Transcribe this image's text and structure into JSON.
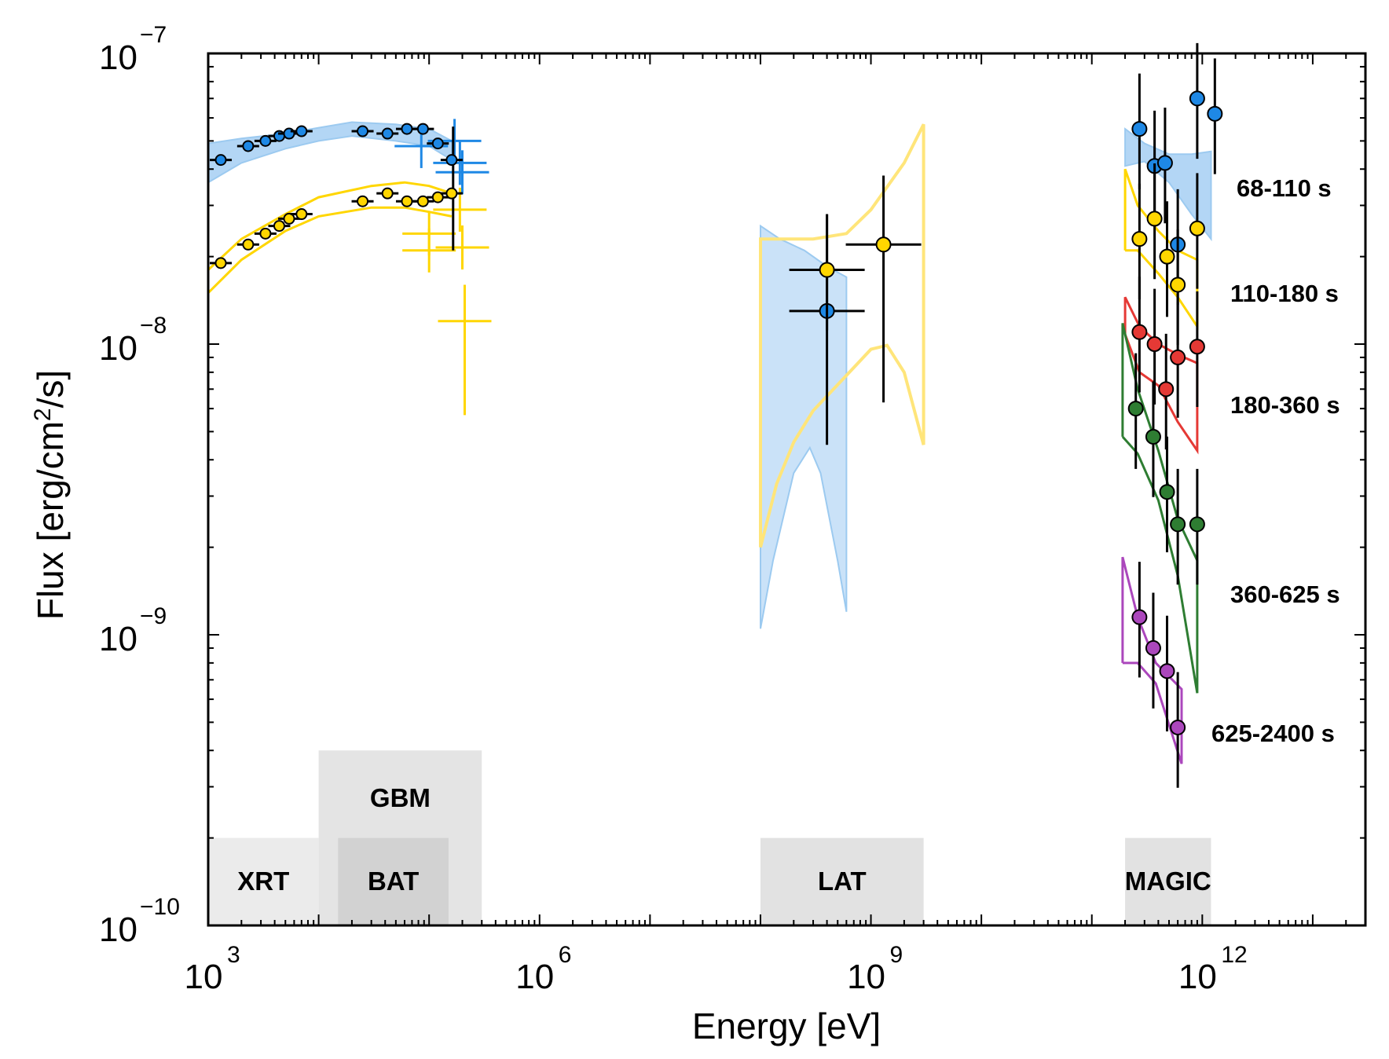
{
  "chart_data": {
    "type": "scatter",
    "title": "",
    "xlabel": "Energy [eV]",
    "ylabel": "Flux [erg/cm2/s]",
    "ylabel_parts": {
      "pre": "Flux [erg/cm",
      "sup": "2",
      "post": "/s]"
    },
    "xscale": "log",
    "yscale": "log",
    "xlim": [
      1000,
      30000000000000.0
    ],
    "ylim": [
      1e-10,
      1e-07
    ],
    "x_ticks": [
      {
        "value": 1000,
        "base": "10",
        "exp": "3"
      },
      {
        "value": 1000000,
        "base": "10",
        "exp": "6"
      },
      {
        "value": 1000000000,
        "base": "10",
        "exp": "9"
      },
      {
        "value": 1000000000000,
        "base": "10",
        "exp": "12"
      }
    ],
    "y_ticks": [
      {
        "value": 1e-10,
        "base": "10",
        "exp": "−10"
      },
      {
        "value": 1e-09,
        "base": "10",
        "exp": "−9"
      },
      {
        "value": 1e-08,
        "base": "10",
        "exp": "−8"
      },
      {
        "value": 1e-07,
        "base": "10",
        "exp": "−7"
      }
    ],
    "colors": {
      "68-110 s": "#1e88e5",
      "110-180 s": "#ffd600",
      "180-360 s": "#e53935",
      "360-625 s": "#2e7d32",
      "625-2400 s": "#ab47bc",
      "band_blue": "#b3d6f5",
      "line_yellow": "#ffe57a",
      "instrument_band": "#d9d9d9"
    },
    "instruments": [
      {
        "name": "XRT",
        "emin": 1000,
        "emax": 10000,
        "fmax": 2e-10
      },
      {
        "name": "GBM",
        "emin": 10000,
        "emax": 300000,
        "fmax": 4e-10
      },
      {
        "name": "BAT",
        "emin": 15000,
        "emax": 150000,
        "fmax": 2e-10
      },
      {
        "name": "LAT",
        "emin": 100000000,
        "emax": 3000000000,
        "fmax": 2e-10
      },
      {
        "name": "MAGIC",
        "emin": 200000000000,
        "emax": 1200000000000,
        "fmax": 2e-10
      }
    ],
    "series": [
      {
        "name": "68-110 s",
        "color": "#1e88e5",
        "points": [
          {
            "x": 1300,
            "y": 4.3e-08
          },
          {
            "x": 2300,
            "y": 4.8e-08
          },
          {
            "x": 3300,
            "y": 5e-08
          },
          {
            "x": 4400,
            "y": 5.2e-08
          },
          {
            "x": 5400,
            "y": 5.3e-08
          },
          {
            "x": 7000,
            "y": 5.4e-08
          },
          {
            "x": 25000,
            "y": 5.4e-08
          },
          {
            "x": 42000,
            "y": 5.3e-08
          },
          {
            "x": 63000,
            "y": 5.5e-08
          },
          {
            "x": 88000,
            "y": 5.5e-08
          },
          {
            "x": 120000,
            "y": 4.9e-08
          },
          {
            "x": 160000,
            "y": 4.3e-08
          },
          {
            "x": 400000000,
            "y": 1.3e-08,
            "ylo": 4.5e-09,
            "yhi": 2.8e-08
          },
          {
            "x": 270000000000,
            "y": 5.5e-08
          },
          {
            "x": 370000000000,
            "y": 4.1e-08
          },
          {
            "x": 460000000000,
            "y": 4.2e-08
          },
          {
            "x": 600000000000,
            "y": 2.2e-08
          },
          {
            "x": 900000000000,
            "y": 7e-08
          },
          {
            "x": 1300000000000,
            "y": 6.2e-08
          }
        ],
        "swift_crosses": [
          {
            "x": 85000,
            "y": 4.8e-08
          },
          {
            "x": 170000,
            "y": 5e-08
          },
          {
            "x": 190000,
            "y": 4.2e-08
          },
          {
            "x": 200000,
            "y": 3.9e-08
          }
        ]
      },
      {
        "name": "110-180 s",
        "color": "#ffd600",
        "points": [
          {
            "x": 1300,
            "y": 1.9e-08
          },
          {
            "x": 2300,
            "y": 2.2e-08
          },
          {
            "x": 3300,
            "y": 2.4e-08
          },
          {
            "x": 4400,
            "y": 2.55e-08
          },
          {
            "x": 5400,
            "y": 2.7e-08
          },
          {
            "x": 7000,
            "y": 2.8e-08
          },
          {
            "x": 25000,
            "y": 3.1e-08
          },
          {
            "x": 42000,
            "y": 3.3e-08
          },
          {
            "x": 63000,
            "y": 3.1e-08
          },
          {
            "x": 88000,
            "y": 3.1e-08
          },
          {
            "x": 120000,
            "y": 3.2e-08
          },
          {
            "x": 160000,
            "y": 3.3e-08
          },
          {
            "x": 400000000,
            "y": 1.8e-08
          },
          {
            "x": 1300000000,
            "y": 2.2e-08,
            "ylo": 6.3e-09,
            "yhi": 3.8e-08
          },
          {
            "x": 270000000000,
            "y": 2.3e-08
          },
          {
            "x": 370000000000,
            "y": 2.7e-08
          },
          {
            "x": 480000000000,
            "y": 2e-08
          },
          {
            "x": 600000000000,
            "y": 1.6e-08
          },
          {
            "x": 900000000000,
            "y": 2.5e-08
          }
        ],
        "swift_crosses": [
          {
            "x": 100000,
            "y": 2.4e-08
          },
          {
            "x": 100000,
            "y": 2.1e-08
          },
          {
            "x": 190000,
            "y": 2.9e-08
          },
          {
            "x": 200000,
            "y": 2.15e-08
          },
          {
            "x": 210000,
            "y": 1.2e-08
          }
        ]
      },
      {
        "name": "180-360 s",
        "color": "#e53935",
        "points": [
          {
            "x": 270000000000,
            "y": 1.1e-08
          },
          {
            "x": 370000000000,
            "y": 1e-08
          },
          {
            "x": 470000000000,
            "y": 7e-09
          },
          {
            "x": 600000000000,
            "y": 9e-09
          },
          {
            "x": 900000000000,
            "y": 9.8e-09
          }
        ]
      },
      {
        "name": "360-625 s",
        "color": "#2e7d32",
        "points": [
          {
            "x": 250000000000,
            "y": 6e-09
          },
          {
            "x": 360000000000,
            "y": 4.8e-09
          },
          {
            "x": 480000000000,
            "y": 3.1e-09
          },
          {
            "x": 600000000000,
            "y": 2.4e-09
          },
          {
            "x": 900000000000,
            "y": 2.4e-09
          }
        ]
      },
      {
        "name": "625-2400 s",
        "color": "#ab47bc",
        "points": [
          {
            "x": 270000000000,
            "y": 1.15e-09
          },
          {
            "x": 360000000000,
            "y": 9e-10
          },
          {
            "x": 480000000000,
            "y": 7.5e-10
          },
          {
            "x": 600000000000,
            "y": 4.8e-10
          }
        ]
      }
    ],
    "annotations": [
      "68-110 s",
      "110-180 s",
      "180-360 s",
      "360-625 s",
      "625-2400 s"
    ]
  }
}
